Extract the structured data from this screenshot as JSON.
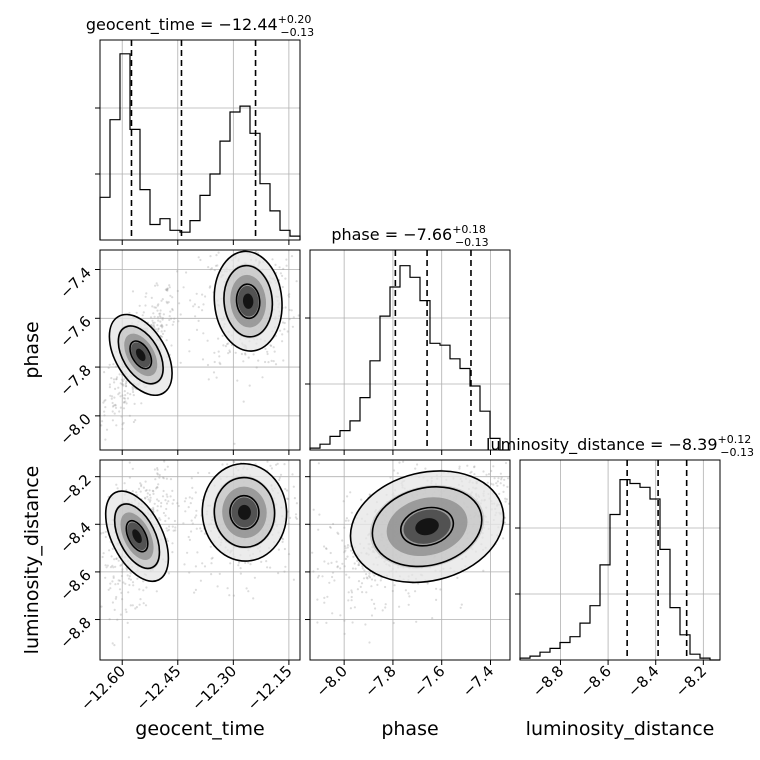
{
  "chart_data": {
    "type": "corner",
    "parameters": [
      {
        "name": "geocent_time",
        "xlabel": "geocent_time",
        "title_main": "geocent_time = −12.44",
        "title_sup": "+0.20",
        "title_sub": "−0.13",
        "median": -12.44,
        "quantiles": [
          -12.575,
          -12.44,
          -12.24
        ],
        "range": [
          -12.66,
          -12.12
        ],
        "ticks": [
          -12.6,
          -12.45,
          -12.3,
          -12.15
        ],
        "tick_labels": [
          "−12.60",
          "−12.45",
          "−12.30",
          "−12.15"
        ],
        "histogram": [
          0.22,
          0.62,
          0.96,
          0.57,
          0.26,
          0.08,
          0.11,
          0.05,
          0.04,
          0.1,
          0.23,
          0.34,
          0.51,
          0.66,
          0.69,
          0.55,
          0.29,
          0.15,
          0.05,
          0.02
        ]
      },
      {
        "name": "phase",
        "xlabel": "phase",
        "ylabel": "phase",
        "title_main": "phase = −7.66",
        "title_sup": "+0.18",
        "title_sub": "−0.13",
        "median": -7.66,
        "quantiles": [
          -7.79,
          -7.66,
          -7.48
        ],
        "range": [
          -8.14,
          -7.32
        ],
        "ticks": [
          -8.0,
          -7.8,
          -7.6,
          -7.4
        ],
        "tick_labels": [
          "−8.0",
          "−7.8",
          "−7.6",
          "−7.4"
        ],
        "histogram": [
          0.01,
          0.03,
          0.07,
          0.1,
          0.15,
          0.27,
          0.46,
          0.69,
          0.84,
          0.95,
          0.89,
          0.77,
          0.55,
          0.54,
          0.47,
          0.42,
          0.33,
          0.2,
          0.06,
          0.0
        ]
      },
      {
        "name": "luminosity_distance",
        "xlabel": "luminosity_distance",
        "ylabel": "luminosity_distance",
        "title_main": "luminosity_distance = −8.39",
        "title_sup": "+0.12",
        "title_sub": "−0.13",
        "median": -8.39,
        "quantiles": [
          -8.52,
          -8.39,
          -8.27
        ],
        "range": [
          -8.97,
          -8.13
        ],
        "ticks": [
          -8.8,
          -8.6,
          -8.4,
          -8.2
        ],
        "tick_labels": [
          "−8.8",
          "−8.6",
          "−8.4",
          "−8.2"
        ],
        "histogram": [
          0.01,
          0.02,
          0.04,
          0.06,
          0.09,
          0.12,
          0.19,
          0.28,
          0.49,
          0.75,
          0.93,
          0.91,
          0.89,
          0.83,
          0.57,
          0.27,
          0.13,
          0.03,
          0.01,
          0.0
        ]
      }
    ],
    "joint": [
      {
        "x_param": "geocent_time",
        "y_param": "phase",
        "modes": [
          {
            "x": -12.55,
            "y": -7.75,
            "sx": 0.03,
            "sy": 0.08,
            "rho": 0.7,
            "weight": 0.52
          },
          {
            "x": -12.26,
            "y": -7.53,
            "sx": 0.04,
            "sy": 0.09,
            "rho": 0.1,
            "weight": 0.48
          }
        ]
      },
      {
        "x_param": "geocent_time",
        "y_param": "luminosity_distance",
        "modes": [
          {
            "x": -12.56,
            "y": -8.45,
            "sx": 0.03,
            "sy": 0.09,
            "rho": 0.5,
            "weight": 0.52
          },
          {
            "x": -12.27,
            "y": -8.35,
            "sx": 0.05,
            "sy": 0.09,
            "rho": 0.1,
            "weight": 0.48
          }
        ]
      },
      {
        "x_param": "phase",
        "y_param": "luminosity_distance",
        "modes": [
          {
            "x": -7.66,
            "y": -8.41,
            "sx": 0.14,
            "sy": 0.1,
            "rho": 0.6,
            "weight": 1.0
          }
        ]
      }
    ],
    "contour_levels": [
      0.5,
      0.8,
      0.95
    ],
    "grid": true
  }
}
